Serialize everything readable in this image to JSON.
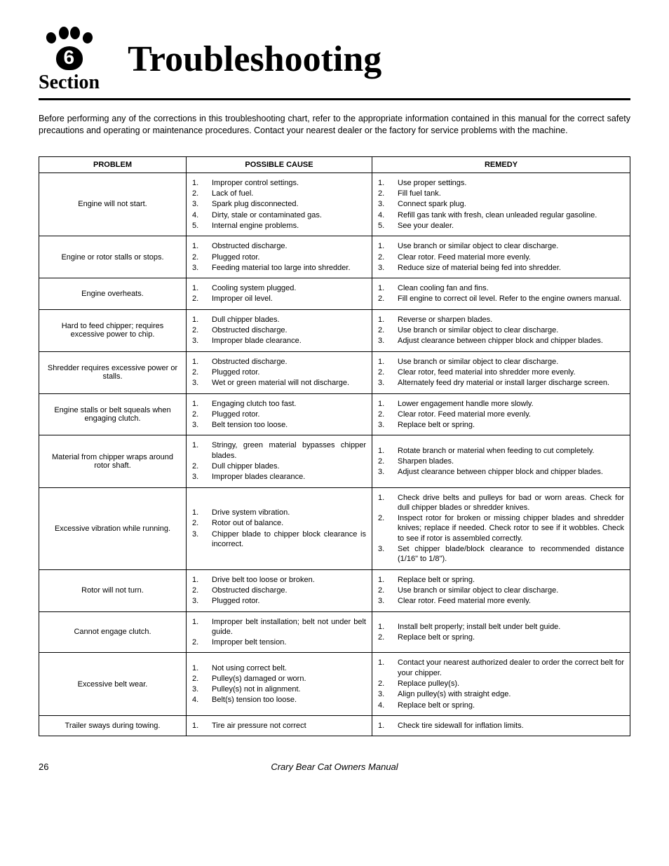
{
  "header": {
    "section_number": "6",
    "section_label": "Section",
    "title": "Troubleshooting"
  },
  "intro": "Before performing any of the corrections in this troubleshooting chart, refer to the appropriate information contained in this manual for the correct safety precautions and operating or maintenance procedures.  Contact your nearest dealer or the factory for service problems with the machine.",
  "table": {
    "headers": [
      "PROBLEM",
      "POSSIBLE CAUSE",
      "REMEDY"
    ],
    "rows": [
      {
        "problem": "Engine will not start.",
        "cause": [
          "Improper control settings.",
          "Lack of fuel.",
          "Spark plug disconnected.",
          "Dirty, stale or contaminated gas.",
          "Internal engine problems."
        ],
        "remedy": [
          "Use proper settings.",
          "Fill fuel tank.",
          "Connect spark plug.",
          "Refill gas tank with fresh, clean unleaded regular gasoline.",
          "See your dealer."
        ]
      },
      {
        "problem": "Engine or rotor stalls or stops.",
        "cause": [
          "Obstructed discharge.",
          "Plugged rotor.",
          "Feeding material too large into shredder."
        ],
        "remedy": [
          "Use branch or similar object to clear discharge.",
          "Clear rotor.  Feed material more evenly.",
          "Reduce size of material being fed into shredder."
        ]
      },
      {
        "problem": "Engine overheats.",
        "cause": [
          "Cooling system plugged.",
          "Improper oil level."
        ],
        "remedy": [
          "Clean cooling fan and fins.",
          "Fill engine to correct oil level.  Refer to the engine owners manual."
        ]
      },
      {
        "problem": "Hard to feed chipper; requires excessive power to chip.",
        "cause": [
          "Dull chipper blades.",
          "Obstructed discharge.",
          "Improper blade clearance."
        ],
        "remedy": [
          "Reverse or sharpen blades.",
          "Use branch or similar object to clear discharge.",
          "Adjust clearance between chipper block and chipper blades."
        ]
      },
      {
        "problem": "Shredder requires excessive power or stalls.",
        "cause": [
          "Obstructed discharge.",
          "Plugged rotor.",
          "Wet or green material will not discharge."
        ],
        "remedy": [
          "Use branch or similar object to clear discharge.",
          "Clear rotor, feed material into shredder more evenly.",
          "Alternately feed dry material or install larger discharge screen."
        ]
      },
      {
        "problem": "Engine stalls or belt squeals when engaging clutch.",
        "cause": [
          "Engaging clutch too fast.",
          "Plugged rotor.",
          "Belt tension too loose."
        ],
        "remedy": [
          "Lower engagement handle more slowly.",
          "Clear rotor.  Feed material more evenly.",
          "Replace belt or spring."
        ]
      },
      {
        "problem": "Material from chipper wraps around rotor shaft.",
        "cause": [
          "Stringy, green material bypasses chipper blades.",
          "Dull chipper blades.",
          "Improper blades clearance."
        ],
        "remedy": [
          "Rotate branch or material when feeding to cut completely.",
          "Sharpen blades.",
          "Adjust clearance between chipper block and chipper blades."
        ]
      },
      {
        "problem": "Excessive vibration while running.",
        "cause": [
          "Drive system vibration.",
          "Rotor out of balance.",
          "Chipper blade to chipper block clearance is incorrect."
        ],
        "remedy": [
          "Check drive belts and pulleys for bad or worn areas.  Check for dull chipper blades or shredder knives.",
          "Inspect rotor for broken or missing chipper blades and shredder knives; replace if needed.  Check rotor to see if it wobbles.  Check to see if rotor is assembled correctly.",
          "Set chipper blade/block clearance to recommended distance (1/16\" to 1/8\")."
        ]
      },
      {
        "problem": "Rotor will not turn.",
        "cause": [
          "Drive belt too loose or broken.",
          "Obstructed discharge.",
          "Plugged rotor."
        ],
        "remedy": [
          "Replace belt or spring.",
          "Use branch or similar object to clear discharge.",
          "Clear rotor.  Feed material more evenly."
        ]
      },
      {
        "problem": "Cannot engage clutch.",
        "cause": [
          "Improper belt installation; belt not under belt guide.",
          "Improper belt tension."
        ],
        "remedy": [
          "Install belt properly; install belt under belt guide.",
          "Replace belt or spring."
        ]
      },
      {
        "problem": "Excessive belt wear.",
        "cause": [
          "Not using correct belt.",
          "Pulley(s) damaged or worn.",
          "Pulley(s) not in alignment.",
          "Belt(s) tension too loose."
        ],
        "remedy": [
          "Contact your nearest authorized dealer to order the correct belt for your chipper.",
          "Replace pulley(s).",
          "Align pulley(s) with straight edge.",
          "Replace belt or spring."
        ]
      },
      {
        "problem": "Trailer sways during towing.",
        "cause": [
          "Tire air pressure not correct"
        ],
        "remedy": [
          "Check tire sidewall for inflation limits."
        ]
      }
    ]
  },
  "footer": {
    "page": "26",
    "manual": "Crary Bear Cat Owners Manual"
  }
}
